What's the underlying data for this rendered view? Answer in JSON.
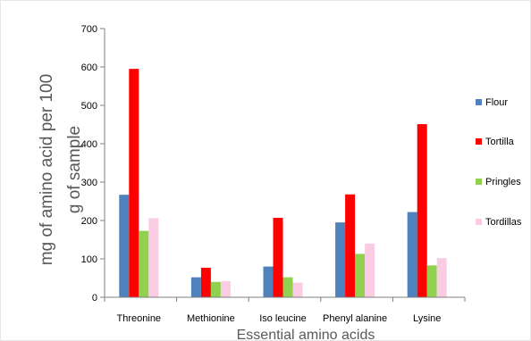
{
  "chart_data": {
    "type": "bar",
    "title": "",
    "xlabel": "Essential amino acids",
    "ylabel_lines": [
      "mg of amino acid per 100",
      "g of sample"
    ],
    "categories": [
      "Threonine",
      "Methionine",
      "Iso leucine",
      "Phenyl alanine",
      "Lysine"
    ],
    "ylim": [
      0,
      700
    ],
    "yticks": [
      0,
      100,
      200,
      300,
      400,
      500,
      600,
      700
    ],
    "grid": false,
    "legend_position": "right",
    "series": [
      {
        "name": "Flour",
        "color": "#4f81bd",
        "values": [
          267,
          52,
          80,
          195,
          222
        ]
      },
      {
        "name": "Tortilla",
        "color": "#ff0000",
        "values": [
          595,
          77,
          207,
          268,
          451
        ]
      },
      {
        "name": "Pringles",
        "color": "#92d050",
        "values": [
          173,
          40,
          52,
          113,
          83
        ]
      },
      {
        "name": "Tordillas",
        "color": "#f9cce3",
        "values": [
          206,
          42,
          38,
          140,
          102
        ]
      }
    ]
  }
}
